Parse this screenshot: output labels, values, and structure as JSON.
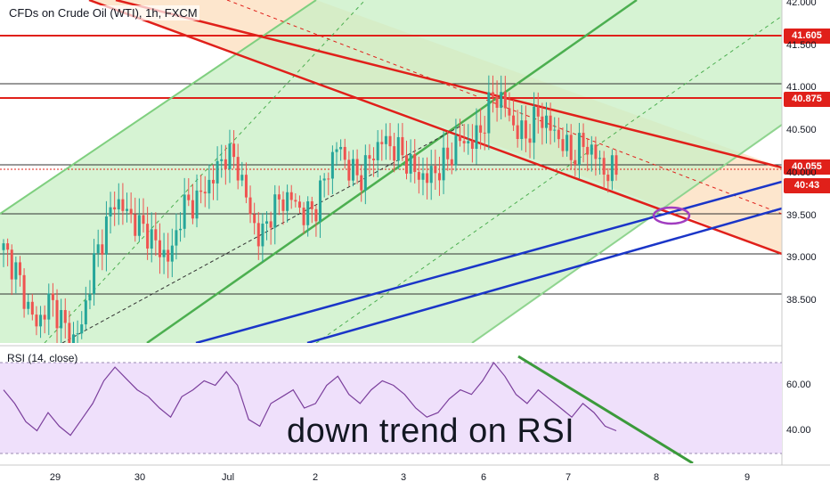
{
  "header": {
    "title": "CFDs on Crude Oil (WTI), 1h, FXCM",
    "rsi_label": "RSI (14, close)"
  },
  "annotation": "down trend on RSI",
  "price_labels": {
    "level_high": "41.605",
    "level_mid": "40.875",
    "current_price": "40.055",
    "countdown": "40:43"
  },
  "colors": {
    "red": "#e0201a",
    "green_line": "#4caf50",
    "green_fill": "#c8efc4",
    "orange_fill": "#fde2c4",
    "blue": "#1a35c8",
    "rsi_band": "#efe0fb",
    "rsi_line": "#7b3f9c",
    "up": "#26a69a",
    "down": "#ef5350",
    "ellipse": "#a03cc0"
  },
  "chart_data": {
    "type": "candlestick",
    "symbol": "CFDs on Crude Oil (WTI)",
    "timeframe": "1h",
    "ylim": [
      38.05,
      42.05
    ],
    "y_ticks": [
      "42.000",
      "41.500",
      "41.000",
      "40.500",
      "40.000",
      "39.500",
      "39.000",
      "38.500"
    ],
    "y_tick_values": [
      42.0,
      41.5,
      41.0,
      40.5,
      40.0,
      39.5,
      39.0,
      38.5
    ],
    "x_ticks": [
      "29",
      "30",
      "Jul",
      "2",
      "3",
      "6",
      "7",
      "8",
      "9"
    ],
    "close_path": [
      [
        0,
        39.1
      ],
      [
        1,
        38.9
      ],
      [
        2,
        38.5
      ],
      [
        3,
        38.2
      ],
      [
        4,
        38.5
      ],
      [
        5,
        38.35
      ],
      [
        6,
        38.0
      ],
      [
        7,
        38.2
      ],
      [
        8,
        38.9
      ],
      [
        9,
        39.3
      ],
      [
        10,
        39.7
      ],
      [
        11,
        39.55
      ],
      [
        12,
        39.4
      ],
      [
        13,
        39.3
      ],
      [
        14,
        39.1
      ],
      [
        15,
        39.0
      ],
      [
        16,
        39.6
      ],
      [
        17,
        39.65
      ],
      [
        18,
        39.8
      ],
      [
        19,
        40.0
      ],
      [
        20,
        40.25
      ],
      [
        21,
        40.1
      ],
      [
        22,
        39.6
      ],
      [
        23,
        39.2
      ],
      [
        24,
        39.55
      ],
      [
        25,
        39.7
      ],
      [
        26,
        39.7
      ],
      [
        27,
        39.5
      ],
      [
        28,
        39.6
      ],
      [
        29,
        40.0
      ],
      [
        30,
        40.35
      ],
      [
        31,
        40.05
      ],
      [
        32,
        39.95
      ],
      [
        33,
        40.2
      ],
      [
        34,
        40.4
      ],
      [
        35,
        40.3
      ],
      [
        36,
        40.2
      ],
      [
        37,
        40.0
      ],
      [
        38,
        39.95
      ],
      [
        39,
        40.05
      ],
      [
        40,
        40.2
      ],
      [
        41,
        40.4
      ],
      [
        42,
        40.35
      ],
      [
        43,
        40.55
      ],
      [
        44,
        40.95
      ],
      [
        45,
        40.8
      ],
      [
        46,
        40.5
      ],
      [
        47,
        40.45
      ],
      [
        48,
        40.7
      ],
      [
        49,
        40.55
      ],
      [
        50,
        40.4
      ],
      [
        51,
        40.2
      ],
      [
        52,
        40.35
      ],
      [
        53,
        40.25
      ],
      [
        54,
        40.0
      ],
      [
        55,
        40.05
      ]
    ],
    "horizontal_levels": [
      {
        "price": 41.605,
        "color": "red",
        "label": "41.605"
      },
      {
        "price": 40.875,
        "color": "red",
        "label": "40.875"
      },
      {
        "price": 41.05,
        "color": "black"
      },
      {
        "price": 40.12,
        "color": "black"
      },
      {
        "price": 39.55,
        "color": "black"
      },
      {
        "price": 39.05,
        "color": "black"
      },
      {
        "price": 38.57,
        "color": "black"
      }
    ],
    "current_price": 40.055,
    "rsi": {
      "label": "RSI (14, close)",
      "ylim": [
        30,
        70
      ],
      "band": [
        30,
        70
      ],
      "y_ticks": [
        "60.00",
        "40.00"
      ],
      "y_tick_values": [
        60,
        40
      ],
      "values": [
        58,
        52,
        44,
        40,
        48,
        42,
        38,
        45,
        52,
        62,
        68,
        63,
        58,
        55,
        50,
        46,
        55,
        58,
        62,
        60,
        66,
        60,
        45,
        42,
        52,
        55,
        58,
        50,
        52,
        60,
        64,
        56,
        52,
        58,
        62,
        60,
        56,
        50,
        46,
        48,
        54,
        58,
        56,
        62,
        70,
        64,
        56,
        52,
        58,
        54,
        50,
        46,
        52,
        48,
        42,
        40
      ],
      "trendline": {
        "label": "down trend on RSI"
      }
    }
  }
}
